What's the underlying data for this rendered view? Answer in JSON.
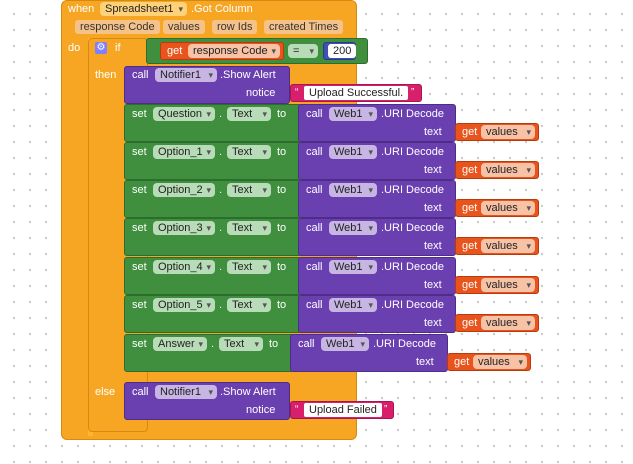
{
  "event": {
    "when": "when",
    "component": "Spreadsheet1",
    "event_name": ".Got Column",
    "params": [
      "response Code",
      "values",
      "row Ids",
      "created Times"
    ],
    "do": "do"
  },
  "if_block": {
    "if": "if",
    "then": "then",
    "else": "else",
    "gear_icon": "gear-icon"
  },
  "condition": {
    "get": "get",
    "var": "response Code",
    "op": "=",
    "value": "200"
  },
  "alert_success": {
    "call": "call",
    "component": "Notifier1",
    "method": ".Show Alert",
    "arg": "notice",
    "text": "Upload Successful."
  },
  "alert_fail": {
    "call": "call",
    "component": "Notifier1",
    "method": ".Show Alert",
    "arg": "notice",
    "text": "Upload Failed"
  },
  "setters": [
    {
      "set": "set",
      "component": "Question",
      "dot": ".",
      "prop": "Text",
      "to": "to",
      "call": "call",
      "web": "Web1",
      "method": ".URI Decode",
      "arg": "text",
      "get": "get",
      "var": "values"
    },
    {
      "set": "set",
      "component": "Option_1",
      "dot": ".",
      "prop": "Text",
      "to": "to",
      "call": "call",
      "web": "Web1",
      "method": ".URI Decode",
      "arg": "text",
      "get": "get",
      "var": "values"
    },
    {
      "set": "set",
      "component": "Option_2",
      "dot": ".",
      "prop": "Text",
      "to": "to",
      "call": "call",
      "web": "Web1",
      "method": ".URI Decode",
      "arg": "text",
      "get": "get",
      "var": "values"
    },
    {
      "set": "set",
      "component": "Option_3",
      "dot": ".",
      "prop": "Text",
      "to": "to",
      "call": "call",
      "web": "Web1",
      "method": ".URI Decode",
      "arg": "text",
      "get": "get",
      "var": "values"
    },
    {
      "set": "set",
      "component": "Option_4",
      "dot": ".",
      "prop": "Text",
      "to": "to",
      "call": "call",
      "web": "Web1",
      "method": ".URI Decode",
      "arg": "text",
      "get": "get",
      "var": "values"
    },
    {
      "set": "set",
      "component": "Option_5",
      "dot": ".",
      "prop": "Text",
      "to": "to",
      "call": "call",
      "web": "Web1",
      "method": ".URI Decode",
      "arg": "text",
      "get": "get",
      "var": "values"
    },
    {
      "set": "set",
      "component": "Answer",
      "dot": ".",
      "prop": "Text",
      "to": "to",
      "call": "call",
      "web": "Web1",
      "method": ".URI Decode",
      "arg": "text",
      "get": "get",
      "var": "values"
    }
  ],
  "colors": {
    "event": "#f6a623",
    "call": "#6a3fb0",
    "set": "#3f8f3f",
    "get": "#e8541c",
    "text": "#d71f6b"
  }
}
